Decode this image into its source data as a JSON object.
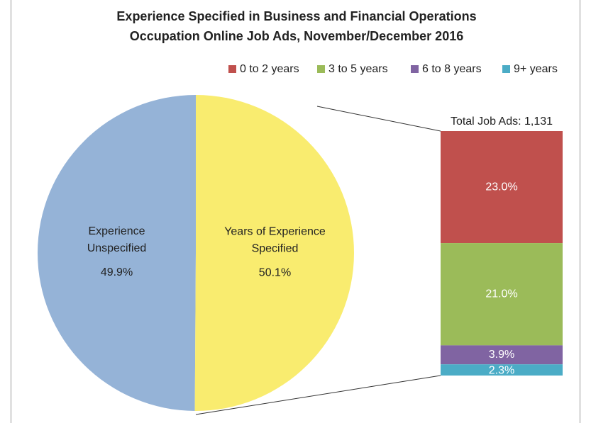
{
  "chart_data": {
    "type": "pie",
    "title": [
      "Experience Specified in Business and Financial Operations",
      "Occupation Online Job Ads, November/December 2016"
    ],
    "categories": [
      [
        "Experience",
        "Unspecified"
      ],
      [
        "Years of Experience",
        "Specified"
      ]
    ],
    "values": [
      49.9,
      50.1
    ],
    "value_labels": [
      "49.9%",
      "50.1%"
    ],
    "colors": [
      "#95b3d7",
      "#f9ec6f"
    ],
    "breakdown": {
      "type": "bar",
      "annotation": "Total Job Ads: 1,131",
      "categories": [
        "0 to 2 years",
        "3 to 5 years",
        "6 to 8 years",
        "9+ years"
      ],
      "values": [
        23.0,
        21.0,
        3.9,
        2.3
      ],
      "value_labels": [
        "23.0%",
        "21.0%",
        "3.9%",
        "2.3%"
      ],
      "colors": [
        "#c0504d",
        "#9bbb59",
        "#8064a2",
        "#4bacc6"
      ]
    }
  }
}
